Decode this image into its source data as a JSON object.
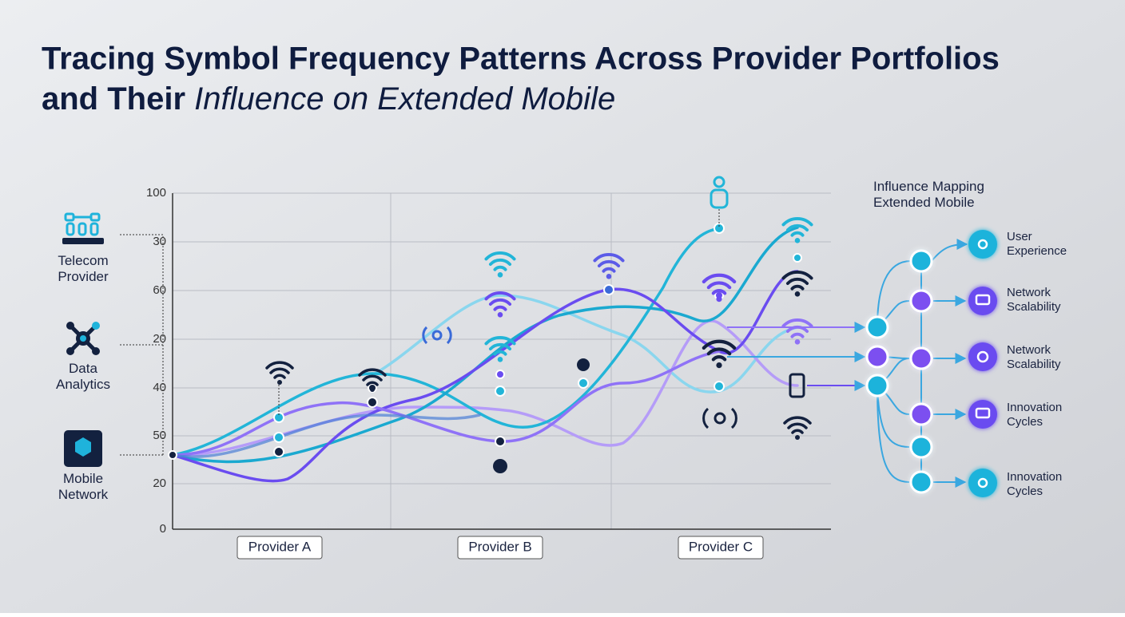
{
  "title": {
    "line1": "Tracing Symbol Frequency Patterns Across Provider Portfolios",
    "line2_bold": "and Their",
    "line2_italic": "Influence on Extended Mobile"
  },
  "y_axis_labels": [
    "100",
    "30",
    "60",
    "20",
    "40",
    "50",
    "20",
    "0"
  ],
  "providers": [
    "Provider A",
    "Provider B",
    "Provider C"
  ],
  "left_labels": [
    [
      "Telecom",
      "Provider"
    ],
    [
      "Data",
      "Analytics"
    ],
    [
      "Mobile",
      "Network"
    ]
  ],
  "influence_map": {
    "title": [
      "Influence Mapping",
      "Extended Mobile"
    ],
    "outcomes": [
      [
        "User",
        "Experience"
      ],
      [
        "Network",
        "Scalability"
      ],
      [
        "Network",
        "Scalability"
      ],
      [
        "Innovation",
        "Cycles"
      ],
      [
        "Innovation",
        "Cycles"
      ]
    ]
  }
}
